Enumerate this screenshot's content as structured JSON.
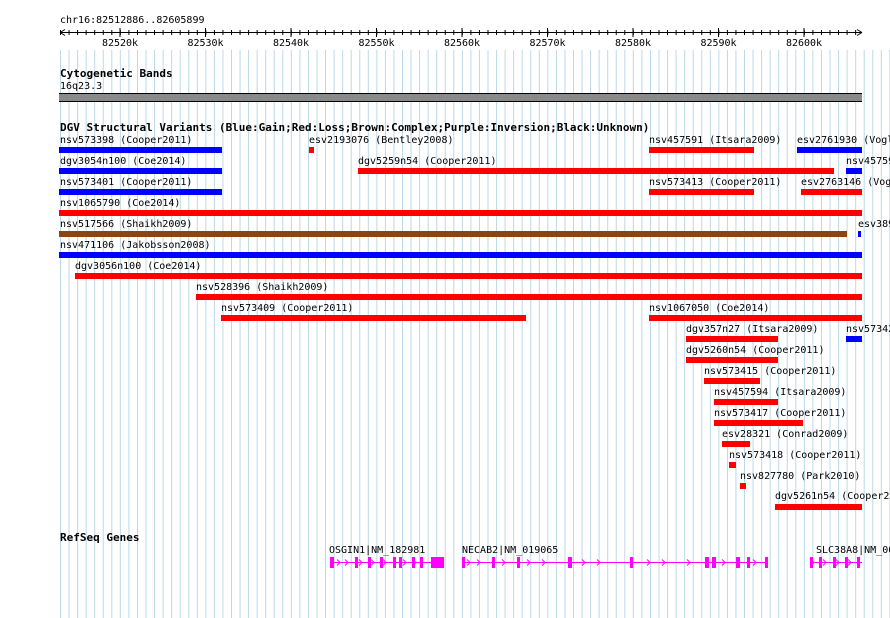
{
  "ruler": {
    "position_label": "chr16:82512886..82605899",
    "ticks": [
      "82520k",
      "82530k",
      "82540k",
      "82550k",
      "82560k",
      "82570k",
      "82580k",
      "82590k",
      "82600k"
    ]
  },
  "cytoband": {
    "title": "Cytogenetic Bands",
    "band_label": "16q23.3"
  },
  "dgv": {
    "title": "DGV Structural Variants (Blue:Gain;Red:Loss;Brown:Complex;Purple:Inversion;Black:Unknown)",
    "colors": {
      "gain": "#0000ff",
      "loss": "#ff0000",
      "complex": "#8b4513"
    },
    "features": [
      {
        "label": "nsv573398 (Cooper2011)",
        "type": "gain"
      },
      {
        "label": "esv2193076 (Bentley2008)",
        "type": "loss"
      },
      {
        "label": "nsv457591 (Itsara2009)",
        "type": "loss"
      },
      {
        "label": "esv2761930 (Vogl",
        "type": "gain"
      },
      {
        "label": "dgv3054n100 (Coe2014)",
        "type": "gain"
      },
      {
        "label": "dgv5259n54 (Cooper2011)",
        "type": "loss"
      },
      {
        "label": "nsv45759",
        "type": "gain"
      },
      {
        "label": "nsv573401 (Cooper2011)",
        "type": "gain"
      },
      {
        "label": "nsv573413 (Cooper2011)",
        "type": "loss"
      },
      {
        "label": "esv2763146 (Vogl",
        "type": "loss"
      },
      {
        "label": "nsv1065790 (Coe2014)",
        "type": "loss"
      },
      {
        "label": "nsv517566 (Shaikh2009)",
        "type": "complex"
      },
      {
        "label": "esv389",
        "type": "gain"
      },
      {
        "label": "nsv471106 (Jakobsson2008)",
        "type": "gain"
      },
      {
        "label": "dgv3056n100 (Coe2014)",
        "type": "loss"
      },
      {
        "label": "nsv528396 (Shaikh2009)",
        "type": "loss"
      },
      {
        "label": "nsv573409 (Cooper2011)",
        "type": "loss"
      },
      {
        "label": "nsv1067050 (Coe2014)",
        "type": "loss"
      },
      {
        "label": "dgv357n27 (Itsara2009)",
        "type": "loss"
      },
      {
        "label": "nsv57342",
        "type": "gain"
      },
      {
        "label": "dgv5260n54 (Cooper2011)",
        "type": "loss"
      },
      {
        "label": "nsv573415 (Cooper2011)",
        "type": "loss"
      },
      {
        "label": "nsv457594 (Itsara2009)",
        "type": "loss"
      },
      {
        "label": "nsv573417 (Cooper2011)",
        "type": "loss"
      },
      {
        "label": "esv28321 (Conrad2009)",
        "type": "loss"
      },
      {
        "label": "nsv573418 (Cooper2011)",
        "type": "loss"
      },
      {
        "label": "nsv827780 (Park2010)",
        "type": "loss"
      },
      {
        "label": "dgv5261n54 (Cooper20",
        "type": "loss"
      }
    ]
  },
  "refseq": {
    "title": "RefSeq Genes",
    "color": "#ff00ff",
    "genes": [
      {
        "label": "OSGIN1|NM_182981"
      },
      {
        "label": "NECAB2|NM_019065"
      },
      {
        "label": "SLC38A8|NM_00"
      }
    ]
  }
}
